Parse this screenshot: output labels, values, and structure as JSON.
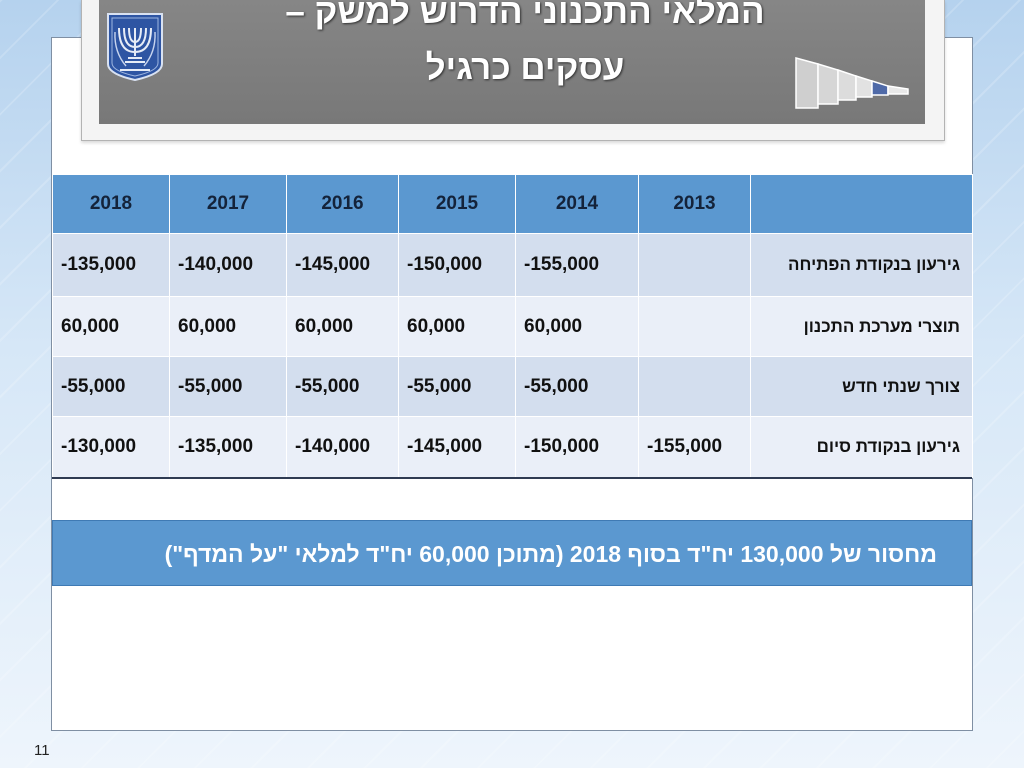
{
  "title": {
    "line1": "המלאי התכנוני הדרוש למשק –",
    "line2": "עסקים כרגיל"
  },
  "icons": {
    "emblem": "menorah-emblem-icon",
    "funnel": "funnel-stages-icon"
  },
  "colors": {
    "header_blue": "#5b98d0",
    "row_dark": "#d3deee",
    "row_light": "#eaeff8",
    "title_gray": "#808080"
  },
  "table": {
    "years": [
      "2018",
      "2017",
      "2016",
      "2015",
      "2014",
      "2013"
    ],
    "rows": [
      {
        "label": "גירעון בנקודת הפתיחה",
        "values": [
          "-135,000",
          "-140,000",
          "-145,000",
          "-150,000",
          "-155,000",
          ""
        ]
      },
      {
        "label": "תוצרי מערכת התכנון",
        "values": [
          "60,000",
          "60,000",
          "60,000",
          "60,000",
          "60,000",
          ""
        ]
      },
      {
        "label": "צורך שנתי חדש",
        "values": [
          "-55,000",
          "-55,000",
          "-55,000",
          "-55,000",
          "-55,000",
          ""
        ]
      },
      {
        "label": "גירעון בנקודת סיום",
        "values": [
          "-130,000",
          "-135,000",
          "-140,000",
          "-145,000",
          "-150,000",
          "-155,000"
        ]
      }
    ]
  },
  "summary": "מחסור של 130,000 יח\"ד בסוף 2018 (מתוכן 60,000 יח\"ד למלאי \"על המדף\")",
  "page_number": "11"
}
